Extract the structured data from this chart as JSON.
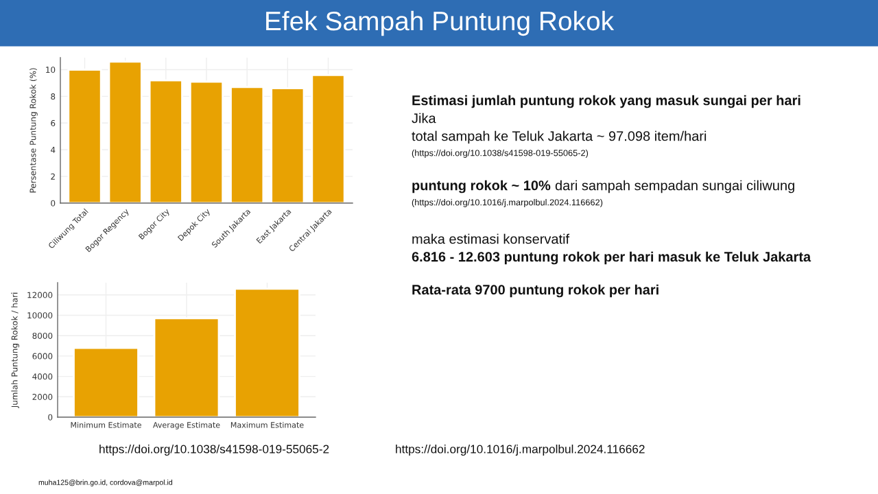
{
  "chart_data": [
    {
      "type": "bar",
      "ylabel": "Persentase Puntung Rokok (%)",
      "categories": [
        "Ciliwung Total",
        "Bogor Regency",
        "Bogor City",
        "Depok City",
        "South Jakarta",
        "East Jakarta",
        "Central Jakarta"
      ],
      "values": [
        10.0,
        10.6,
        9.2,
        9.1,
        8.7,
        8.6,
        9.6
      ],
      "color": "#e8a202",
      "ylim": [
        0,
        10.9
      ],
      "yticks": [
        0,
        2,
        4,
        6,
        8,
        10
      ],
      "grid": true
    },
    {
      "type": "bar",
      "ylabel": "Jumlah Puntung Rokok / hari",
      "categories": [
        "Minimum Estimate",
        "Average Estimate",
        "Maximum Estimate"
      ],
      "values": [
        6800,
        9700,
        12600
      ],
      "color": "#e8a202",
      "ylim": [
        0,
        13200
      ],
      "yticks": [
        0,
        2000,
        4000,
        6000,
        8000,
        10000,
        12000
      ],
      "grid": true
    },
    {
      "type": "other",
      "title": "Efek Sampah Puntung Rokok",
      "annotations": [
        "Estimasi jumlah puntung rokok yang masuk sungai per hari",
        "Jika",
        "total sampah ke Teluk Jakarta ~ 97.098 item/hari",
        "(https://doi.org/10.1038/s41598-019-55065-2)",
        "puntung rokok ~ 10%",
        "dari sampah sempadan sungai ciliwung",
        "(https://doi.org/10.1016/j.marpolbul.2024.116662)",
        "maka estimasi konservatif",
        "6.816 - 12.603 puntung rokok per hari masuk ke Teluk Jakarta",
        "Rata-rata 9700 puntung rokok per hari",
        "https://doi.org/10.1038/s41598-019-55065-2",
        "https://doi.org/10.1016/j.marpolbul.2024.116662",
        "muha125@brin.go.id, cordova@marpol.id"
      ]
    }
  ]
}
